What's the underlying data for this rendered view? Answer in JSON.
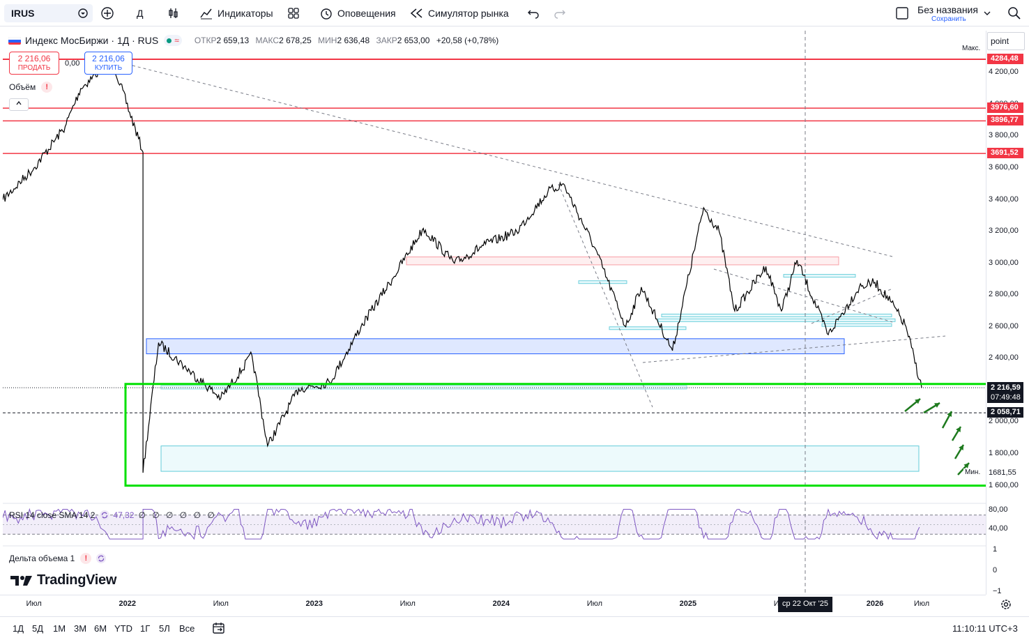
{
  "toolbar": {
    "symbol": "IRUS",
    "interval": "Д",
    "indicators_label": "Индикаторы",
    "alerts_label": "Оповещения",
    "replay_label": "Симулятор рынка",
    "layout_title": "Без названия",
    "save_label": "Сохранить"
  },
  "legend": {
    "name": "Индекс МосБиржи · 1Д · RUS",
    "open_key": "ОТКР",
    "open": "2 659,13",
    "high_key": "МАКС",
    "high": "2 678,25",
    "low_key": "МИН",
    "low": "2 636,48",
    "close_key": "ЗАКР",
    "close": "2 653,00",
    "change": "+20,58 (+0,78%)"
  },
  "trade": {
    "sell_price": "2 216,06",
    "sell_label": "ПРОДАТЬ",
    "buy_price": "2 216,06",
    "buy_label": "КУПИТЬ",
    "spread": "0,00"
  },
  "panels": {
    "volume_label": "Объём",
    "rsi_label": "RSI 14 close SMA 14 2",
    "rsi_value": "47,32",
    "rsi_zeros": "∅ ∅ ∅ ∅ ∅ ∅",
    "delta_label": "Дельта объема 1"
  },
  "logo": "TradingView",
  "price_axis": {
    "unit": "point",
    "max_label": "Макс.",
    "min_label": "Мин.",
    "max_value": "4284,48",
    "min_value": "1681,55",
    "current_price": "2 216,59",
    "countdown": "07:49:48",
    "hline_2058": "2 058,71",
    "ticks": [
      "4 200,00",
      "4 000,00",
      "3 800,00",
      "3 600,00",
      "3 400,00",
      "3 200,00",
      "3 000,00",
      "2 800,00",
      "2 600,00",
      "2 400,00",
      "2 000,00",
      "1 800,00",
      "1 600,00"
    ],
    "rsi_ticks": [
      "80,00",
      "40,00"
    ],
    "delta_ticks": [
      "1",
      "0",
      "−1"
    ]
  },
  "time_axis": {
    "ticks": [
      "Июл",
      "2022",
      "Июл",
      "2023",
      "Июл",
      "2024",
      "Июл",
      "2025",
      "Июл",
      "2026",
      "Июл"
    ],
    "crosshair_date": "ср 22 Окт '25"
  },
  "bottom_bar": {
    "ranges": [
      "1Д",
      "5Д",
      "1М",
      "3М",
      "6М",
      "YTD",
      "1Г",
      "5Л",
      "Все"
    ],
    "clock": "11:10:11 UTC+3"
  },
  "chart_data": {
    "type": "line",
    "y_unit": "point",
    "ylim": [
      1600,
      4284.48
    ],
    "x": [
      "2021-05",
      "2021-07",
      "2021-09",
      "2021-10",
      "2021-12",
      "2022-02",
      "2022-02",
      "2022-03",
      "2022-05",
      "2022-07",
      "2022-09",
      "2022-10",
      "2022-12",
      "2023-02",
      "2023-04",
      "2023-06",
      "2023-08",
      "2023-10",
      "2023-12",
      "2024-02",
      "2024-04",
      "2024-05",
      "2024-07",
      "2024-09",
      "2024-10",
      "2024-12",
      "2025-02",
      "2025-03",
      "2025-04",
      "2025-06",
      "2025-07",
      "2025-08",
      "2025-10",
      "2025-12",
      "2026-01",
      "2026-02",
      "2026-03",
      "2026-04"
    ],
    "y": [
      3400,
      3600,
      3860,
      4100,
      4284,
      3700,
      1681,
      2500,
      2320,
      2150,
      2420,
      1850,
      2210,
      2250,
      2600,
      2900,
      3220,
      3000,
      3120,
      3200,
      3450,
      3500,
      3100,
      2600,
      2850,
      2450,
      3350,
      3200,
      2700,
      2980,
      2700,
      3020,
      2550,
      2850,
      2880,
      2760,
      2600,
      2216
    ],
    "horizontal_levels": [
      4284.48,
      3976.6,
      3896.77,
      3691.52,
      2216.59,
      2058.71
    ],
    "rsi": {
      "value": 47.32,
      "levels": [
        70,
        30
      ]
    }
  },
  "colors": {
    "accent": "#2962ff",
    "level_red": "#f23645",
    "price_line": "#000000",
    "target_box": "#00e000",
    "arrows": "#1e7a1e",
    "rsi_line": "#7e57c2"
  }
}
